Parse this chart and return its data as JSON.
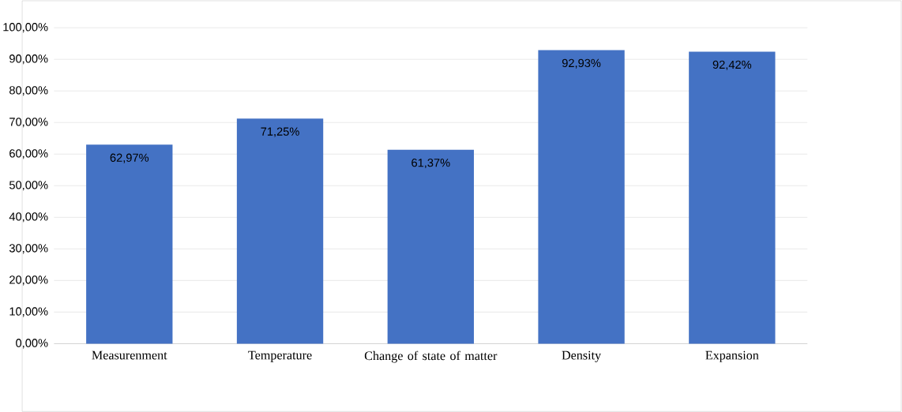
{
  "chart_data": {
    "type": "bar",
    "categories": [
      "Measurenment",
      "Temperature",
      "Change of state of matter",
      "Density",
      "Expansion"
    ],
    "values": [
      62.97,
      71.25,
      61.37,
      92.93,
      92.42
    ],
    "value_labels": [
      "62,97%",
      "71,25%",
      "61,37%",
      "92,93%",
      "92,42%"
    ],
    "color": "#4472c4",
    "ylim": [
      0,
      100
    ],
    "yticks": [
      {
        "value": 0,
        "label": "0,00%"
      },
      {
        "value": 10,
        "label": "10,00%"
      },
      {
        "value": 20,
        "label": "20,00%"
      },
      {
        "value": 30,
        "label": "30,00%"
      },
      {
        "value": 40,
        "label": "40,00%"
      },
      {
        "value": 50,
        "label": "50,00%"
      },
      {
        "value": 60,
        "label": "60,00%"
      },
      {
        "value": 70,
        "label": "70,00%"
      },
      {
        "value": 80,
        "label": "80,00%"
      },
      {
        "value": 90,
        "label": "90,00%"
      },
      {
        "value": 100,
        "label": "100,00%"
      }
    ],
    "grid": "y"
  }
}
